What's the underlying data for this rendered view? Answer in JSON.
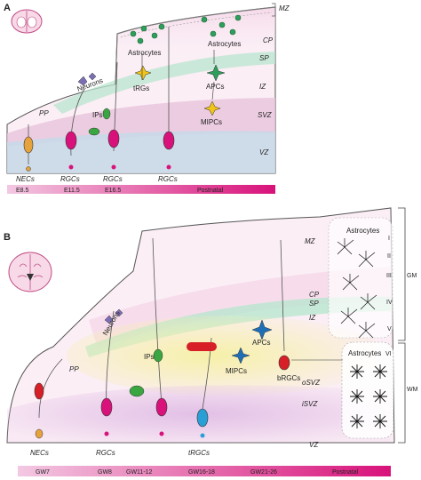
{
  "panel_a": {
    "letter": "A",
    "layers": [
      "MZ",
      "CP",
      "SP",
      "IZ",
      "SVZ",
      "VZ"
    ],
    "zone_labels": [
      "PP"
    ],
    "cells": {
      "neurons": "Neurons",
      "ips": "IPs",
      "trgs": "tRGs",
      "astrocytes_1": "Astrocytes",
      "astrocytes_2": "Astrocytes",
      "apcs": "APCs",
      "mipcs": "MIPCs"
    },
    "bottom_labels": [
      "NECs",
      "RGCs",
      "RGCs",
      "RGCs"
    ],
    "timeline": [
      "E8.5",
      "E11.5",
      "E16.5",
      "Postnatal"
    ]
  },
  "panel_b": {
    "letter": "B",
    "layers": [
      "MZ",
      "CP",
      "SP",
      "IZ",
      "oSVZ",
      "iSVZ",
      "VZ"
    ],
    "zone_labels": [
      "PP"
    ],
    "cortical_layers": [
      "I",
      "II",
      "III",
      "IV",
      "V",
      "VI"
    ],
    "region_labels": [
      "GM",
      "WM"
    ],
    "cells": {
      "neurons": "Neurons",
      "ips": "IPs",
      "apcs": "APCs",
      "mipcs": "MIPCs",
      "brgcs": "bRGCs",
      "astrocytes_gm": "Astrocytes",
      "astrocytes_wm": "Astrocytes"
    },
    "bottom_labels": [
      "NECs",
      "RGCs",
      "tRGCs"
    ],
    "timeline": [
      "GW7",
      "GW8",
      "GW11-12",
      "GW16-18",
      "GW21-26",
      "Postnatal"
    ]
  },
  "colors": {
    "vz": "#c9d9e8",
    "svz": "#e8c3dc",
    "sp_band": "#b9e6cf",
    "iz": "#f2f0c4",
    "cp": "#f6dcea",
    "rgc_body": "#d8127a",
    "ip_green": "#3aa641",
    "apc_blue": "#1f6fb7",
    "brgc_red": "#d61f26",
    "astro_green": "#2e9e5b",
    "astro_black": "#111111",
    "mipc_yellow": "#f0c419",
    "timeline_start": "#ecb7d8",
    "timeline_end": "#d8127a"
  }
}
